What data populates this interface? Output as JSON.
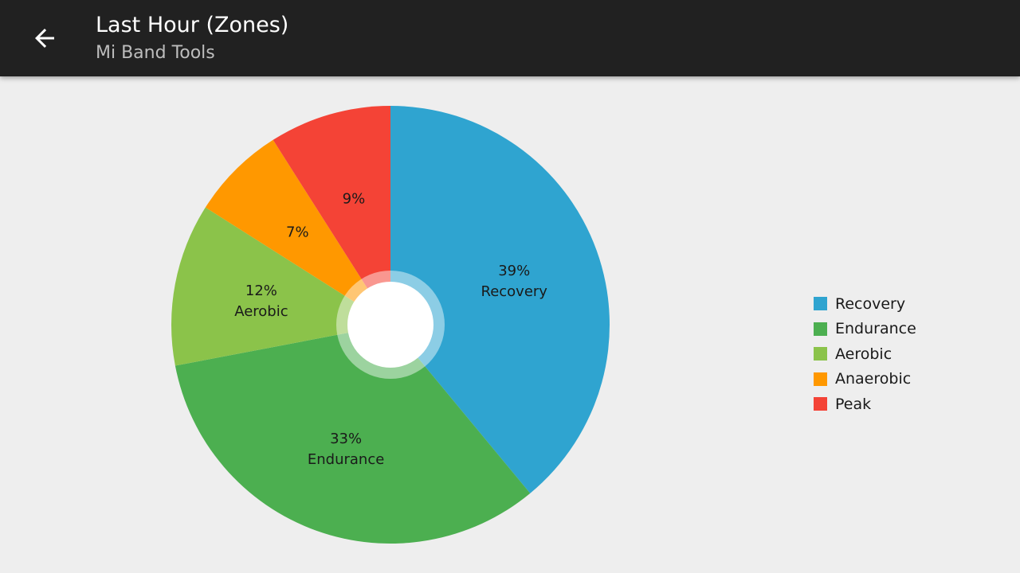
{
  "header": {
    "title": "Last Hour (Zones)",
    "subtitle": "Mi Band Tools",
    "back_icon": "arrow-back-icon"
  },
  "colors": {
    "app_bar": "#212121",
    "background": "#eeeeee"
  },
  "chart_data": {
    "type": "pie",
    "style": "donut",
    "title": "",
    "start_angle_deg": 0,
    "direction": "clockwise",
    "slices": [
      {
        "name": "Recovery",
        "value": 39,
        "label": "39%",
        "sublabel": "Recovery",
        "color": "#2fa4d0"
      },
      {
        "name": "Endurance",
        "value": 33,
        "label": "33%",
        "sublabel": "Endurance",
        "color": "#4caf50"
      },
      {
        "name": "Aerobic",
        "value": 12,
        "label": "12%",
        "sublabel": "Aerobic",
        "color": "#8bc34a"
      },
      {
        "name": "Anaerobic",
        "value": 7,
        "label": "7%",
        "sublabel": "",
        "color": "#ff9800"
      },
      {
        "name": "Peak",
        "value": 9,
        "label": "9%",
        "sublabel": "",
        "color": "#f44336"
      }
    ],
    "legend": {
      "position": "right",
      "entries": [
        "Recovery",
        "Endurance",
        "Aerobic",
        "Anaerobic",
        "Peak"
      ]
    }
  }
}
